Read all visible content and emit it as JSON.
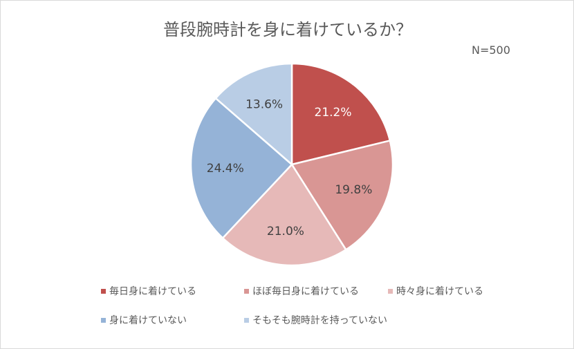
{
  "chart_data": {
    "type": "pie",
    "title": "普段腕時計を身に着けているか？",
    "annotation": "N=500",
    "start": "top",
    "direction": "clockwise",
    "legend_position": "bottom",
    "categories": [
      "毎日身に着けている",
      "ほぼ毎日身に着けている",
      "時々身に着けている",
      "身に着けていない",
      "そもそも腕時計を持っていない"
    ],
    "values": [
      21.2,
      19.8,
      21.0,
      24.4,
      13.6
    ],
    "labels": [
      "21.2%",
      "19.8%",
      "21.0%",
      "24.4%",
      "13.6%"
    ],
    "colors": [
      "#C0504D",
      "#D99694",
      "#E6B9B8",
      "#95B3D7",
      "#B9CDE5"
    ],
    "label_colors": [
      "#ffffff",
      "#404040",
      "#404040",
      "#404040",
      "#404040"
    ]
  }
}
